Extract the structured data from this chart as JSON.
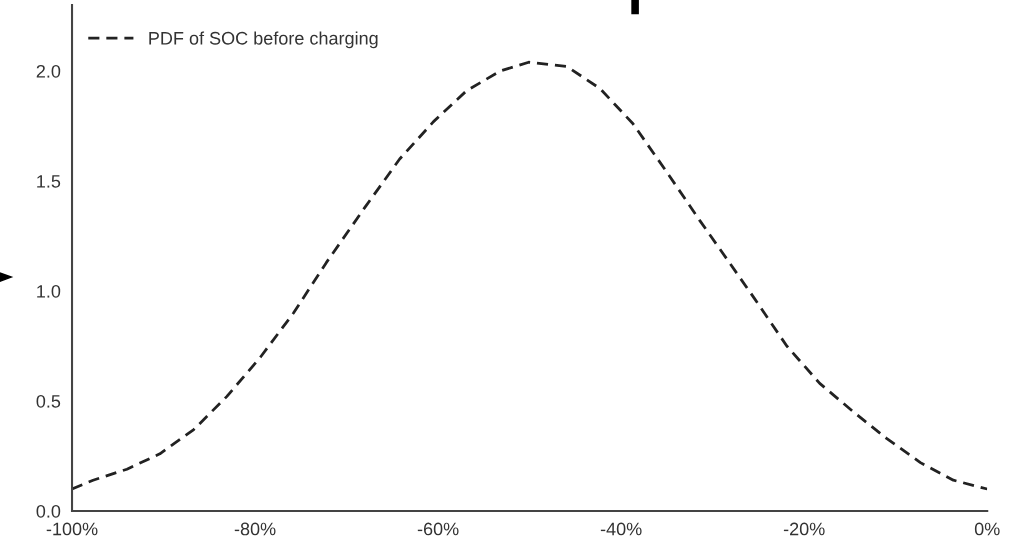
{
  "chart_data": {
    "type": "line",
    "line_style": "dashed",
    "marker": "none",
    "grid": false,
    "legend": "top left",
    "xlim": [
      -100,
      0
    ],
    "xticks": [
      {
        "value": -100,
        "label": "-100%"
      },
      {
        "value": -80,
        "label": "-80%"
      },
      {
        "value": -60,
        "label": "-60%"
      },
      {
        "value": -40,
        "label": "-40%"
      },
      {
        "value": -20,
        "label": "-20%"
      },
      {
        "value": 0,
        "label": "0%"
      }
    ],
    "ylim": [
      0,
      2.3
    ],
    "yticks": [
      {
        "value": 0,
        "label": "0.0"
      },
      {
        "value": 0.5,
        "label": "0.5"
      },
      {
        "value": 1,
        "label": "1.0"
      },
      {
        "value": 1.5,
        "label": "1.5"
      },
      {
        "value": 2,
        "label": "2.0"
      }
    ],
    "series": [
      {
        "name": "PDF of SOC before charging",
        "color": "#222222",
        "x": [
          -100,
          -97.7,
          -94,
          -90.4,
          -86.7,
          -83.1,
          -79.4,
          -75.8,
          -72.2,
          -68,
          -64.2,
          -60.5,
          -56.9,
          -53.2,
          -50.1,
          -45.9,
          -42.3,
          -38.7,
          -35,
          -31.4,
          -29.2,
          -25.5,
          -21.9,
          -18.3,
          -14.6,
          -11,
          -7.3,
          -3.7,
          0
        ],
        "values": [
          0.1,
          0.14,
          0.19,
          0.26,
          0.37,
          0.52,
          0.7,
          0.9,
          1.13,
          1.38,
          1.6,
          1.77,
          1.91,
          2.0,
          2.04,
          2.02,
          1.92,
          1.76,
          1.54,
          1.32,
          1.19,
          0.97,
          0.75,
          0.58,
          0.45,
          0.33,
          0.22,
          0.14,
          0.1
        ]
      }
    ]
  }
}
